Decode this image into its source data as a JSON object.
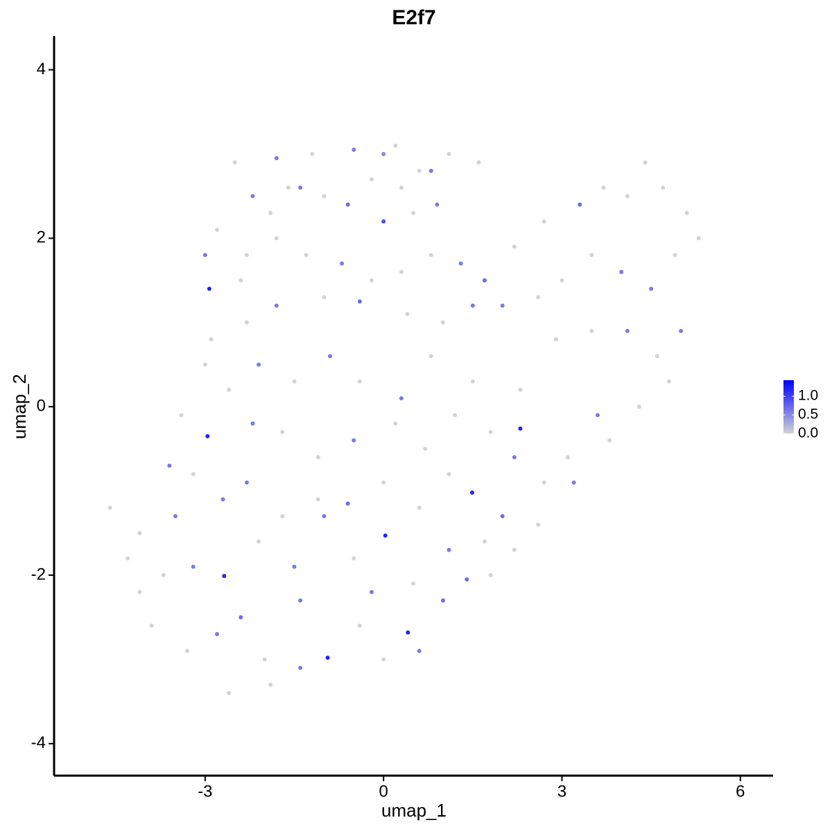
{
  "chart_data": {
    "type": "scatter",
    "title": "E2f7",
    "x_label": "umap_1",
    "y_label": "umap_2",
    "xlim": [
      -5.54,
      6.55
    ],
    "ylim": [
      -4.38,
      4.4
    ],
    "xticks": [
      -3,
      0,
      3,
      6
    ],
    "yticks": [
      -4,
      -2,
      0,
      2,
      4
    ],
    "color_low": "#d3d3d3",
    "color_high": "#0000ff",
    "color_lim": [
      0,
      1.43
    ],
    "color_ticks": [
      {
        "value": 1,
        "label": "1.0"
      },
      {
        "value": 0.5,
        "label": "0.5"
      },
      {
        "value": 0,
        "label": "0.0"
      }
    ],
    "x": [
      -2.5,
      -1.8,
      -1.2,
      -0.5,
      0.0,
      0.2,
      0.6,
      0.8,
      1.1,
      1.6,
      -2.2,
      -1.6,
      -1.0,
      -0.6,
      0.0,
      0.5,
      0.9,
      -2.8,
      -2.3,
      -1.8,
      -1.3,
      -0.7,
      -0.2,
      0.3,
      0.8,
      1.3,
      1.7,
      2.2,
      2.7,
      3.3,
      3.7,
      4.1,
      4.4,
      4.7,
      5.1,
      5.3,
      4.9,
      4.5,
      4.0,
      3.5,
      3.0,
      2.6,
      2.0,
      1.5,
      1.0,
      0.4,
      -0.4,
      -1.0,
      -1.8,
      -2.3,
      -2.93,
      -3.0,
      -2.6,
      -2.1,
      -1.5,
      -0.9,
      -0.4,
      0.3,
      0.8,
      1.5,
      2.3,
      2.9,
      3.5,
      4.1,
      4.6,
      5.0,
      4.8,
      4.3,
      3.8,
      3.6,
      3.1,
      2.7,
      3.2,
      2.2,
      2.3,
      1.8,
      1.2,
      0.7,
      0.2,
      -0.5,
      -1.1,
      -1.7,
      -2.2,
      -2.96,
      -3.6,
      -3.2,
      -2.7,
      -2.3,
      -1.7,
      -1.1,
      -0.6,
      0.0,
      0.6,
      1.1,
      1.49,
      2.0,
      2.6,
      1.7,
      1.1,
      0.03,
      -0.5,
      -1.0,
      -1.5,
      -2.1,
      -2.68,
      -3.2,
      -3.7,
      -4.1,
      -3.9,
      -3.3,
      -2.8,
      -2.4,
      -2.0,
      -2.6,
      -1.9,
      -1.4,
      -1.4,
      -0.94,
      -0.4,
      0.0,
      0.41,
      0.6,
      1.0,
      0.5,
      1.4,
      1.8,
      2.2,
      -0.2,
      -4.6,
      -4.3,
      -4.1,
      -3.5,
      -3.4,
      -2.9,
      -2.4,
      -3.0,
      -1.9,
      -1.4,
      -0.2,
      0.3
    ],
    "values": [
      2.9,
      2.95,
      3.0,
      3.05,
      3.0,
      3.1,
      2.8,
      2.8,
      3.0,
      2.9,
      2.5,
      2.6,
      2.5,
      2.4,
      2.2,
      2.3,
      2.4,
      2.1,
      1.8,
      2.0,
      1.8,
      1.7,
      1.5,
      1.6,
      1.8,
      1.7,
      1.5,
      1.9,
      2.2,
      2.4,
      2.6,
      2.5,
      2.9,
      2.6,
      2.3,
      2.0,
      1.8,
      1.4,
      1.6,
      1.8,
      1.5,
      1.3,
      1.2,
      1.2,
      1.0,
      1.1,
      1.25,
      1.3,
      1.2,
      1.0,
      1.4,
      0.5,
      0.2,
      0.5,
      0.3,
      0.6,
      0.3,
      0.1,
      0.6,
      0.3,
      0.2,
      0.8,
      0.9,
      0.9,
      0.6,
      0.9,
      0.3,
      0.0,
      -0.4,
      -0.1,
      -0.6,
      -0.9,
      -0.9,
      -0.6,
      -0.26,
      -0.3,
      -0.1,
      -0.5,
      -0.2,
      -0.4,
      -0.6,
      -0.3,
      -0.2,
      -0.35,
      -0.7,
      -0.8,
      -1.1,
      -0.9,
      -1.3,
      -1.1,
      -1.15,
      -0.9,
      -1.2,
      -0.8,
      -1.02,
      -1.3,
      -1.4,
      -1.6,
      -1.7,
      -1.53,
      -1.8,
      -1.3,
      -1.9,
      -1.6,
      -2.01,
      -1.9,
      -2.0,
      -2.2,
      -2.6,
      -2.9,
      -2.7,
      -2.5,
      -3.0,
      -3.4,
      -3.3,
      -2.3,
      -3.1,
      -2.98,
      -2.6,
      -3.0,
      -2.68,
      -2.9,
      -2.3,
      -2.1,
      -2.05,
      -2.0,
      -1.7,
      -2.2,
      -1.2,
      -1.8,
      -1.5,
      -1.3,
      -0.1,
      0.8,
      1.5,
      1.8,
      2.3,
      2.6,
      2.7,
      2.6
    ],
    "expression": [
      0,
      0.6,
      0,
      0.6,
      0.5,
      0,
      0,
      0.6,
      0,
      0,
      0.6,
      0,
      0,
      0.7,
      0.9,
      0,
      0.6,
      0,
      0,
      0,
      0,
      0.6,
      0,
      0,
      0,
      0.6,
      0.7,
      0,
      0,
      0.7,
      0,
      0,
      0,
      0,
      0,
      0,
      0,
      0.6,
      0.6,
      0,
      0,
      0,
      0.6,
      0.6,
      0,
      0,
      0.7,
      0,
      0.6,
      0,
      1.2,
      0,
      0,
      0.6,
      0,
      0.6,
      0,
      0.6,
      0,
      0,
      0,
      0,
      0,
      0.6,
      0,
      0.6,
      0,
      0,
      0,
      0.6,
      0,
      0,
      0.6,
      0.6,
      1.2,
      0,
      0,
      0,
      0,
      0.6,
      0,
      0,
      0.6,
      1.2,
      0.6,
      0,
      0.6,
      0.6,
      0,
      0,
      0.7,
      0,
      0,
      0,
      1.2,
      0.7,
      0,
      0,
      0.6,
      1.2,
      0,
      0.6,
      0.6,
      0,
      1.2,
      0.6,
      0,
      0,
      0,
      0,
      0.6,
      0.7,
      0,
      0,
      0,
      0.6,
      0.6,
      1.2,
      0,
      0,
      1.2,
      0.6,
      0.7,
      0,
      0.7,
      0,
      0,
      0.6,
      0,
      0,
      0,
      0.6,
      0,
      0,
      0,
      0.6,
      0,
      0.6,
      0,
      0
    ]
  }
}
